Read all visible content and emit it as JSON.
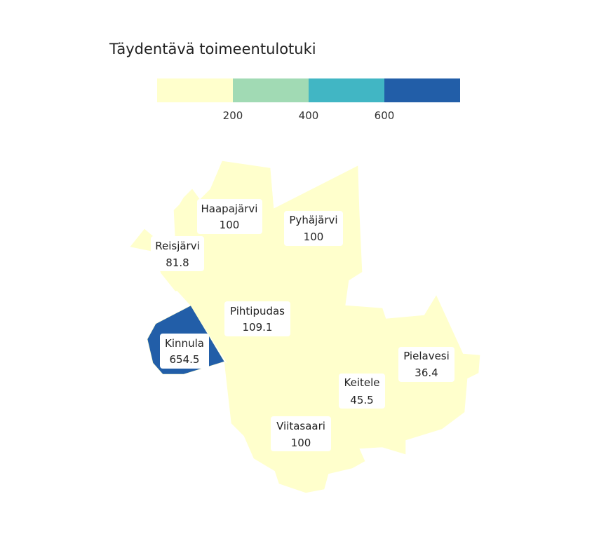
{
  "title": "Täydentävä toimeentulotuki",
  "legend": {
    "ticks": [
      "200",
      "400",
      "600"
    ],
    "colors": [
      "#ffffcc",
      "#a1dab4",
      "#41b6c4",
      "#225ea8"
    ]
  },
  "regions": [
    {
      "name": "Haapajärvi",
      "value": "100",
      "color": "#ffffcc"
    },
    {
      "name": "Pyhäjärvi",
      "value": "100",
      "color": "#ffffcc"
    },
    {
      "name": "Reisjärvi",
      "value": "81.8",
      "color": "#ffffcc"
    },
    {
      "name": "Pihtipudas",
      "value": "109.1",
      "color": "#ffffcc"
    },
    {
      "name": "Kinnula",
      "value": "654.5",
      "color": "#225ea8"
    },
    {
      "name": "Pielavesi",
      "value": "36.4",
      "color": "#ffffcc"
    },
    {
      "name": "Keitele",
      "value": "45.5",
      "color": "#ffffcc"
    },
    {
      "name": "Viitasaari",
      "value": "100",
      "color": "#ffffcc"
    }
  ]
}
